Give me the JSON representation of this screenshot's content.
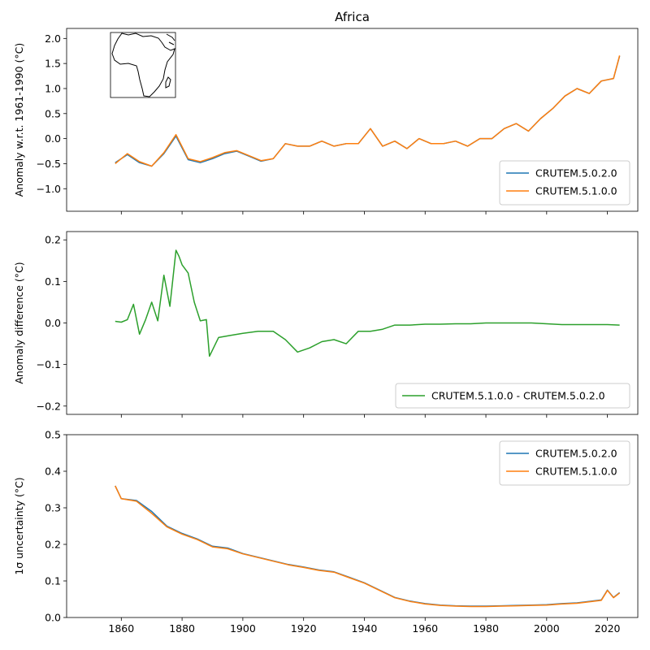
{
  "chart_data": [
    {
      "type": "line",
      "title": "Africa",
      "xlabel": "",
      "ylabel": "Anomaly w.r.t. 1961-1990 (°C)",
      "xlim": [
        1842,
        2030
      ],
      "ylim": [
        -1.45,
        2.2
      ],
      "xticks": [
        1860,
        1880,
        1900,
        1920,
        1940,
        1960,
        1980,
        2000,
        2020
      ],
      "yticks": [
        -1.0,
        -0.5,
        0.0,
        0.5,
        1.0,
        1.5,
        2.0
      ],
      "ytick_labels": [
        "−1.0",
        "−0.5",
        "0.0",
        "0.5",
        "1.0",
        "1.5",
        "2.0"
      ],
      "inset": "africa-map",
      "legend_position": "lower-right",
      "x": [
        1858,
        1862,
        1866,
        1870,
        1874,
        1878,
        1882,
        1886,
        1890,
        1894,
        1898,
        1902,
        1906,
        1910,
        1914,
        1918,
        1922,
        1926,
        1930,
        1934,
        1938,
        1942,
        1946,
        1950,
        1954,
        1958,
        1962,
        1966,
        1970,
        1974,
        1978,
        1982,
        1986,
        1990,
        1994,
        1998,
        2002,
        2006,
        2010,
        2014,
        2018,
        2022,
        2024
      ],
      "series": [
        {
          "name": "CRUTEM.5.0.2.0",
          "color": "#1f77b4",
          "values": [
            -0.48,
            -0.32,
            -0.48,
            -0.55,
            -0.3,
            0.05,
            -0.42,
            -0.48,
            -0.4,
            -0.3,
            -0.25,
            -0.35,
            -0.45,
            -0.4,
            -0.1,
            -0.15,
            -0.15,
            -0.05,
            -0.15,
            -0.1,
            -0.1,
            0.2,
            -0.15,
            -0.05,
            -0.2,
            0.0,
            -0.1,
            -0.1,
            -0.05,
            -0.15,
            0.0,
            0.0,
            0.2,
            0.3,
            0.15,
            0.4,
            0.6,
            0.85,
            1.0,
            0.9,
            1.15,
            1.2,
            1.65
          ]
        },
        {
          "name": "CRUTEM.5.1.0.0",
          "color": "#ff7f0e",
          "values": [
            -0.5,
            -0.3,
            -0.46,
            -0.55,
            -0.28,
            0.08,
            -0.4,
            -0.46,
            -0.38,
            -0.28,
            -0.24,
            -0.34,
            -0.44,
            -0.4,
            -0.1,
            -0.15,
            -0.15,
            -0.05,
            -0.15,
            -0.1,
            -0.1,
            0.2,
            -0.15,
            -0.05,
            -0.2,
            0.0,
            -0.1,
            -0.1,
            -0.05,
            -0.15,
            0.0,
            0.0,
            0.2,
            0.3,
            0.15,
            0.4,
            0.6,
            0.85,
            1.0,
            0.9,
            1.15,
            1.2,
            1.66
          ]
        }
      ]
    },
    {
      "type": "line",
      "title": "",
      "xlabel": "",
      "ylabel": "Anomaly difference (°C)",
      "xlim": [
        1842,
        2030
      ],
      "ylim": [
        -0.22,
        0.22
      ],
      "xticks": [
        1860,
        1880,
        1900,
        1920,
        1940,
        1960,
        1980,
        2000,
        2020
      ],
      "yticks": [
        -0.2,
        -0.1,
        0.0,
        0.1,
        0.2
      ],
      "ytick_labels": [
        "−0.2",
        "−0.1",
        "0.0",
        "0.1",
        "0.2"
      ],
      "legend_position": "lower-right",
      "x": [
        1858,
        1860,
        1862,
        1864,
        1866,
        1868,
        1870,
        1872,
        1874,
        1876,
        1878,
        1879,
        1880,
        1882,
        1884,
        1886,
        1888,
        1889,
        1892,
        1896,
        1900,
        1905,
        1910,
        1914,
        1918,
        1922,
        1926,
        1930,
        1934,
        1938,
        1942,
        1946,
        1950,
        1955,
        1960,
        1965,
        1970,
        1975,
        1980,
        1985,
        1990,
        1995,
        2000,
        2005,
        2010,
        2015,
        2020,
        2024
      ],
      "series": [
        {
          "name": "CRUTEM.5.1.0.0 - CRUTEM.5.0.2.0",
          "color": "#2ca02c",
          "values": [
            0.004,
            0.002,
            0.008,
            0.045,
            -0.027,
            0.008,
            0.05,
            0.005,
            0.115,
            0.04,
            0.175,
            0.16,
            0.14,
            0.12,
            0.05,
            0.005,
            0.008,
            -0.08,
            -0.035,
            -0.03,
            -0.025,
            -0.02,
            -0.02,
            -0.04,
            -0.07,
            -0.06,
            -0.045,
            -0.04,
            -0.05,
            -0.02,
            -0.02,
            -0.015,
            -0.005,
            -0.005,
            -0.003,
            -0.003,
            -0.002,
            -0.002,
            0.0,
            0.0,
            0.0,
            0.0,
            -0.002,
            -0.004,
            -0.004,
            -0.004,
            -0.004,
            -0.005
          ]
        }
      ]
    },
    {
      "type": "line",
      "title": "",
      "xlabel": "",
      "ylabel": "1σ uncertainty (°C)",
      "xlim": [
        1842,
        2030
      ],
      "ylim": [
        0.0,
        0.5
      ],
      "xticks": [
        1860,
        1880,
        1900,
        1920,
        1940,
        1960,
        1980,
        2000,
        2020
      ],
      "yticks": [
        0.0,
        0.1,
        0.2,
        0.3,
        0.4,
        0.5
      ],
      "ytick_labels": [
        "0.0",
        "0.1",
        "0.2",
        "0.3",
        "0.4",
        "0.5"
      ],
      "legend_position": "upper-right",
      "x": [
        1858,
        1860,
        1865,
        1870,
        1875,
        1880,
        1885,
        1890,
        1895,
        1900,
        1905,
        1910,
        1915,
        1920,
        1925,
        1930,
        1935,
        1940,
        1945,
        1950,
        1955,
        1960,
        1965,
        1970,
        1975,
        1980,
        1985,
        1990,
        1995,
        2000,
        2005,
        2010,
        2015,
        2018,
        2020,
        2022,
        2024
      ],
      "series": [
        {
          "name": "CRUTEM.5.0.2.0",
          "color": "#1f77b4",
          "values": [
            0.36,
            0.325,
            0.32,
            0.29,
            0.25,
            0.23,
            0.215,
            0.195,
            0.19,
            0.175,
            0.165,
            0.155,
            0.145,
            0.138,
            0.13,
            0.125,
            0.11,
            0.095,
            0.075,
            0.055,
            0.045,
            0.038,
            0.034,
            0.032,
            0.031,
            0.031,
            0.032,
            0.033,
            0.034,
            0.035,
            0.038,
            0.04,
            0.045,
            0.048,
            0.075,
            0.055,
            0.068
          ]
        },
        {
          "name": "CRUTEM.5.1.0.0",
          "color": "#ff7f0e",
          "values": [
            0.36,
            0.325,
            0.318,
            0.285,
            0.248,
            0.228,
            0.213,
            0.193,
            0.188,
            0.174,
            0.164,
            0.154,
            0.144,
            0.137,
            0.129,
            0.124,
            0.109,
            0.094,
            0.074,
            0.054,
            0.044,
            0.037,
            0.033,
            0.031,
            0.03,
            0.03,
            0.031,
            0.032,
            0.033,
            0.034,
            0.037,
            0.039,
            0.044,
            0.047,
            0.074,
            0.054,
            0.067
          ]
        }
      ]
    }
  ]
}
